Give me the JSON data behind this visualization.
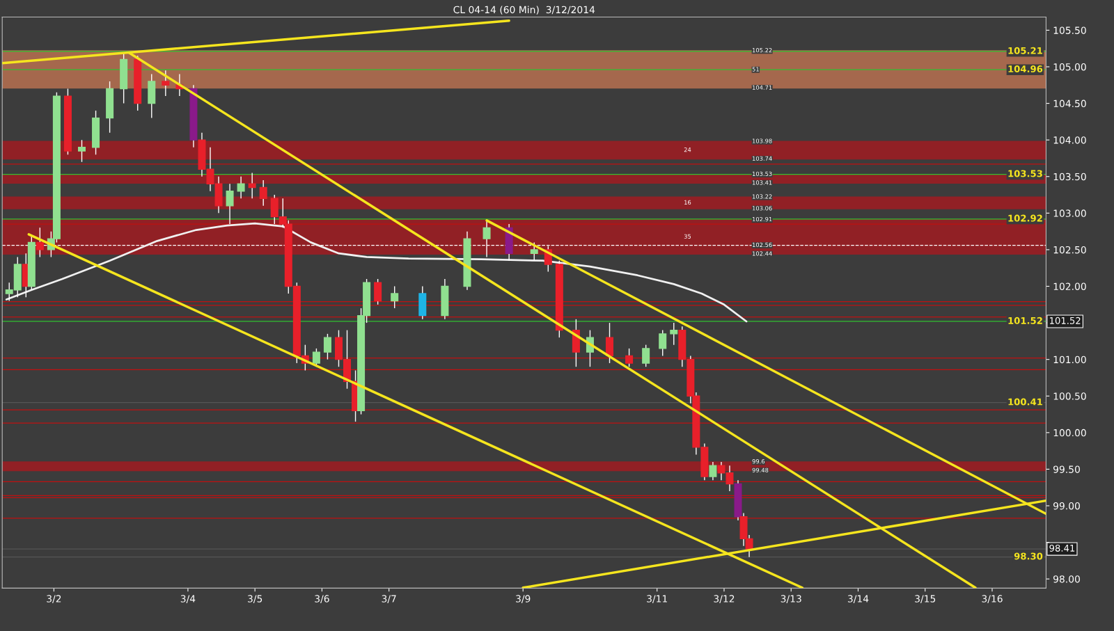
{
  "chart_data": {
    "type": "candlestick",
    "title": "CL 04-14 (60 Min)  3/12/2014",
    "x": [
      "2014-03-01T08:00",
      "2014-03-01T11:00",
      "2014-03-01T14:00",
      "2014-03-01T16:00",
      "2014-03-01T19:00",
      "2014-03-01T23:00",
      "2014-03-02T01:00",
      "2014-03-02T05:00",
      "2014-03-02T10:00",
      "2014-03-02T15:00",
      "2014-03-02T20:00",
      "2014-03-03T01:00",
      "2014-03-03T06:00",
      "2014-03-03T11:00",
      "2014-03-03T16:00",
      "2014-03-03T21:00",
      "2014-03-04T02:00",
      "2014-03-04T05:00",
      "2014-03-04T08:00",
      "2014-03-04T11:00",
      "2014-03-04T15:00",
      "2014-03-04T19:00",
      "2014-03-04T23:00",
      "2014-03-05T03:00",
      "2014-03-05T07:00",
      "2014-03-05T10:00",
      "2014-03-05T12:00",
      "2014-03-05T15:00",
      "2014-03-05T18:00",
      "2014-03-05T22:00",
      "2014-03-06T02:00",
      "2014-03-06T06:00",
      "2014-03-06T09:00",
      "2014-03-06T12:00",
      "2014-03-06T14:00",
      "2014-03-06T16:00",
      "2014-03-06T20:00",
      "2014-03-07T02:00",
      "2014-03-07T12:00",
      "2014-03-07T20:00",
      "2014-03-08T04:00",
      "2014-03-08T11:00",
      "2014-03-08T19:00",
      "2014-03-09T04:00",
      "2014-03-09T09:00",
      "2014-03-09T13:00",
      "2014-03-09T19:00",
      "2014-03-10T00:00",
      "2014-03-10T07:00",
      "2014-03-10T14:00",
      "2014-03-10T20:00",
      "2014-03-11T02:00",
      "2014-03-11T06:00",
      "2014-03-11T09:00",
      "2014-03-11T12:00",
      "2014-03-11T14:00",
      "2014-03-11T17:00",
      "2014-03-11T20:00",
      "2014-03-11T23:00",
      "2014-03-12T02:00",
      "2014-03-12T05:00",
      "2014-03-12T07:00",
      "2014-03-12T09:00"
    ],
    "ohlc": [
      [
        101.9,
        102.05,
        101.8,
        101.95
      ],
      [
        101.95,
        102.4,
        101.85,
        102.3
      ],
      [
        102.3,
        102.45,
        101.85,
        102.0
      ],
      [
        102.0,
        102.7,
        101.95,
        102.6
      ],
      [
        102.6,
        102.8,
        102.4,
        102.5
      ],
      [
        102.5,
        102.75,
        102.4,
        102.65
      ],
      [
        102.65,
        104.65,
        102.6,
        104.6
      ],
      [
        104.6,
        104.7,
        103.8,
        103.85
      ],
      [
        103.85,
        104.0,
        103.7,
        103.9
      ],
      [
        103.9,
        104.4,
        103.8,
        104.3
      ],
      [
        104.3,
        104.8,
        104.1,
        104.7
      ],
      [
        104.7,
        105.2,
        104.5,
        105.1
      ],
      [
        105.1,
        105.15,
        104.4,
        104.5
      ],
      [
        104.5,
        104.9,
        104.3,
        104.8
      ],
      [
        104.8,
        104.95,
        104.6,
        104.75
      ],
      [
        104.75,
        104.9,
        104.6,
        104.7
      ],
      [
        104.7,
        104.75,
        103.9,
        104.0
      ],
      [
        104.0,
        104.1,
        103.5,
        103.6
      ],
      [
        103.6,
        103.9,
        103.3,
        103.4
      ],
      [
        103.4,
        103.5,
        103.0,
        103.1
      ],
      [
        103.1,
        103.4,
        102.85,
        103.3
      ],
      [
        103.3,
        103.5,
        103.2,
        103.4
      ],
      [
        103.4,
        103.55,
        103.2,
        103.35
      ],
      [
        103.35,
        103.45,
        103.1,
        103.2
      ],
      [
        103.2,
        103.25,
        102.85,
        102.95
      ],
      [
        102.95,
        103.2,
        102.8,
        102.85
      ],
      [
        102.85,
        102.9,
        101.9,
        102.0
      ],
      [
        102.0,
        102.05,
        100.95,
        101.05
      ],
      [
        101.05,
        101.2,
        100.85,
        100.95
      ],
      [
        100.95,
        101.15,
        100.9,
        101.1
      ],
      [
        101.1,
        101.35,
        101.0,
        101.3
      ],
      [
        101.3,
        101.4,
        100.9,
        101.0
      ],
      [
        101.0,
        101.4,
        100.6,
        100.7
      ],
      [
        100.7,
        100.85,
        100.15,
        100.3
      ],
      [
        100.3,
        101.7,
        100.25,
        101.6
      ],
      [
        101.6,
        102.1,
        101.5,
        102.05
      ],
      [
        102.05,
        102.1,
        101.75,
        101.8
      ],
      [
        101.8,
        102.0,
        101.7,
        101.9
      ],
      [
        101.9,
        102.0,
        101.55,
        101.6
      ],
      [
        101.6,
        102.1,
        101.55,
        102.0
      ],
      [
        102.0,
        102.75,
        101.95,
        102.65
      ],
      [
        102.65,
        102.9,
        102.4,
        102.8
      ],
      [
        102.8,
        102.85,
        102.35,
        102.45
      ],
      [
        102.45,
        102.6,
        102.35,
        102.5
      ],
      [
        102.5,
        102.55,
        102.2,
        102.3
      ],
      [
        102.3,
        102.35,
        101.3,
        101.4
      ],
      [
        101.4,
        101.55,
        100.9,
        101.1
      ],
      [
        101.1,
        101.4,
        100.9,
        101.3
      ],
      [
        101.3,
        101.5,
        100.95,
        101.05
      ],
      [
        101.05,
        101.15,
        100.9,
        100.95
      ],
      [
        100.95,
        101.2,
        100.9,
        101.15
      ],
      [
        101.15,
        101.4,
        101.05,
        101.35
      ],
      [
        101.35,
        101.5,
        101.2,
        101.4
      ],
      [
        101.4,
        101.45,
        100.9,
        101.0
      ],
      [
        101.0,
        101.05,
        100.4,
        100.5
      ],
      [
        100.5,
        100.55,
        99.7,
        99.8
      ],
      [
        99.8,
        99.85,
        99.35,
        99.4
      ],
      [
        99.4,
        99.6,
        99.35,
        99.55
      ],
      [
        99.55,
        99.6,
        99.35,
        99.45
      ],
      [
        99.45,
        99.55,
        99.2,
        99.3
      ],
      [
        99.3,
        99.35,
        98.8,
        98.85
      ],
      [
        98.85,
        98.9,
        98.45,
        98.55
      ],
      [
        98.55,
        98.6,
        98.3,
        98.41
      ]
    ],
    "colors": [
      "#90e090",
      "#90e090",
      "#e8202a",
      "#90e090",
      "#e8202a",
      "#90e090",
      "#90e090",
      "#e8202a",
      "#90e090",
      "#90e090",
      "#90e090",
      "#90e090",
      "#e8202a",
      "#90e090",
      "#e8202a",
      "#e8202a",
      "#8a1a8a",
      "#e8202a",
      "#e8202a",
      "#e8202a",
      "#90e090",
      "#90e090",
      "#e8202a",
      "#e8202a",
      "#e8202a",
      "#e8202a",
      "#e8202a",
      "#e8202a",
      "#e8202a",
      "#90e090",
      "#90e090",
      "#e8202a",
      "#e8202a",
      "#e8202a",
      "#90e090",
      "#90e090",
      "#e8202a",
      "#90e090",
      "#1eb4e6",
      "#90e090",
      "#90e090",
      "#90e090",
      "#8a1a8a",
      "#90e090",
      "#e8202a",
      "#e8202a",
      "#e8202a",
      "#90e090",
      "#e8202a",
      "#e8202a",
      "#90e090",
      "#90e090",
      "#90e090",
      "#e8202a",
      "#e8202a",
      "#e8202a",
      "#e8202a",
      "#90e090",
      "#e8202a",
      "#e8202a",
      "#8a1a8a",
      "#e8202a",
      "#e8202a"
    ],
    "series": [
      {
        "type": "line",
        "color": "#f0f0f0",
        "x": [
          "2014-03-01T07:00",
          "2014-03-01T16:00",
          "2014-03-02T03:00",
          "2014-03-02T20:00",
          "2014-03-03T13:00",
          "2014-03-04T03:00",
          "2014-03-04T14:00",
          "2014-03-05T00:00",
          "2014-03-05T10:00",
          "2014-03-05T20:00",
          "2014-03-06T06:00",
          "2014-03-06T16:00",
          "2014-03-07T07:00",
          "2014-03-08T09:00",
          "2014-03-09T07:00",
          "2014-03-10T00:00",
          "2014-03-10T17:00",
          "2014-03-11T06:00",
          "2014-03-11T16:00",
          "2014-03-12T00:00",
          "2014-03-12T08:00"
        ],
        "values": [
          101.82,
          101.95,
          102.1,
          102.35,
          102.62,
          102.77,
          102.83,
          102.86,
          102.82,
          102.6,
          102.45,
          102.4,
          102.38,
          102.37,
          102.35,
          102.27,
          102.15,
          102.03,
          101.9,
          101.75,
          101.52
        ]
      },
      {
        "type": "line",
        "color": "#f5e51e",
        "x": [
          "2014-03-01T05:30",
          "2014-03-08T19:00"
        ],
        "values": [
          105.05,
          105.63
        ]
      },
      {
        "type": "line",
        "color": "#f5e51e",
        "x": [
          "2014-03-01T15:00",
          "2014-03-13T04:00"
        ],
        "values": [
          102.71,
          97.88
        ]
      },
      {
        "type": "line",
        "color": "#f5e51e",
        "x": [
          "2014-03-03T03:00",
          "2014-03-15T18:00"
        ],
        "values": [
          105.19,
          97.88
        ]
      },
      {
        "type": "line",
        "color": "#f5e51e",
        "x": [
          "2014-03-08T11:00",
          "2014-03-16T19:18"
        ],
        "values": [
          102.9,
          98.89
        ]
      },
      {
        "type": "line",
        "color": "#f5e51e",
        "x": [
          "2014-03-09T00:00",
          "2014-03-16T19:18"
        ],
        "values": [
          97.88,
          99.07
        ]
      }
    ],
    "xlim": [
      "2014-03-01T05:30",
      "2014-03-16T19:18"
    ],
    "xticks": [
      {
        "value": "2014-03-02",
        "label": "3/2"
      },
      {
        "value": "2014-03-04",
        "label": "3/4"
      },
      {
        "value": "2014-03-05",
        "label": "3/5"
      },
      {
        "value": "2014-03-06",
        "label": "3/6"
      },
      {
        "value": "2014-03-07",
        "label": "3/7"
      },
      {
        "value": "2014-03-09",
        "label": "3/9"
      },
      {
        "value": "2014-03-11",
        "label": "3/11"
      },
      {
        "value": "2014-03-12",
        "label": "3/12"
      },
      {
        "value": "2014-03-13",
        "label": "3/13"
      },
      {
        "value": "2014-03-14",
        "label": "3/14"
      },
      {
        "value": "2014-03-15",
        "label": "3/15"
      },
      {
        "value": "2014-03-16",
        "label": "3/16"
      }
    ],
    "ylim": [
      97.875,
      105.68
    ],
    "yticks": [
      {
        "value": 98,
        "label": "98.00"
      },
      {
        "value": 98.5,
        "label": null
      },
      {
        "value": 99,
        "label": "99.00"
      },
      {
        "value": 99.5,
        "label": "99.50"
      },
      {
        "value": 100,
        "label": "100.00"
      },
      {
        "value": 100.5,
        "label": "100.50"
      },
      {
        "value": 101,
        "label": "101.00"
      },
      {
        "value": 101.5,
        "label": null
      },
      {
        "value": 102,
        "label": "102.00"
      },
      {
        "value": 102.5,
        "label": "102.50"
      },
      {
        "value": 103,
        "label": "103.00"
      },
      {
        "value": 103.5,
        "label": "103.50"
      },
      {
        "value": 104,
        "label": "104.00"
      },
      {
        "value": 104.5,
        "label": "104.50"
      },
      {
        "value": 105,
        "label": "105.00"
      },
      {
        "value": 105.5,
        "label": "105.50"
      }
    ],
    "bands": [
      {
        "axis": "y",
        "from": 104.71,
        "to": 105.22,
        "color": "#b87050"
      },
      {
        "axis": "y",
        "from": 103.74,
        "to": 103.98,
        "color": "#a01c22",
        "label": "24"
      },
      {
        "axis": "y",
        "from": 103.41,
        "to": 103.53,
        "color": "#a01c22"
      },
      {
        "axis": "y",
        "from": 103.06,
        "to": 103.22,
        "color": "#a01c22",
        "label": "16"
      },
      {
        "axis": "y",
        "from": 102.44,
        "to": 102.91,
        "color": "#a01c22",
        "label": "35"
      },
      {
        "axis": "y",
        "from": 99.48,
        "to": 99.6,
        "color": "#a01c22"
      }
    ],
    "ref_lines": [
      {
        "axis": "y",
        "value": 105.21,
        "label": "105.21",
        "color": "#30c030"
      },
      {
        "axis": "y",
        "value": 104.96,
        "label": "104.96",
        "color": "#30c030"
      },
      {
        "axis": "y",
        "value": 103.53,
        "label": "103.53",
        "color": "#30c030"
      },
      {
        "axis": "y",
        "value": 102.92,
        "label": "102.92",
        "color": "#30c030"
      },
      {
        "axis": "y",
        "value": 101.52,
        "label": "101.52",
        "color": "#30c030"
      },
      {
        "axis": "y",
        "value": 100.41,
        "label": "100.41",
        "color": "#555555"
      },
      {
        "axis": "y",
        "value": 98.3,
        "label": "98.30",
        "color": "#555555"
      },
      {
        "axis": "y",
        "value": 98.41,
        "color": "#555555"
      },
      {
        "axis": "y",
        "value": 102.56,
        "color": "#ffffff",
        "line_style": "dashed"
      },
      {
        "axis": "y",
        "value": 103.67,
        "color": "#c01010"
      },
      {
        "axis": "y",
        "value": 102.85,
        "color": "#c01010"
      },
      {
        "axis": "y",
        "value": 101.79,
        "color": "#c01010"
      },
      {
        "axis": "y",
        "value": 101.74,
        "color": "#c01010"
      },
      {
        "axis": "y",
        "value": 101.58,
        "color": "#c01010"
      },
      {
        "axis": "y",
        "value": 101.02,
        "color": "#c01010"
      },
      {
        "axis": "y",
        "value": 100.86,
        "color": "#c01010"
      },
      {
        "axis": "y",
        "value": 100.31,
        "color": "#c01010"
      },
      {
        "axis": "y",
        "value": 100.13,
        "color": "#c01010"
      },
      {
        "axis": "y",
        "value": 99.33,
        "color": "#c01010"
      },
      {
        "axis": "y",
        "value": 99.14,
        "color": "#c01010"
      },
      {
        "axis": "y",
        "value": 99.11,
        "color": "#c01010"
      },
      {
        "axis": "y",
        "value": 98.83,
        "color": "#c01010"
      }
    ],
    "annotations": [
      {
        "text": "101.52",
        "x": "2014-03-16T19:18",
        "y": 101.52
      },
      {
        "text": "98.41",
        "x": "2014-03-16T19:18",
        "y": 98.41
      },
      {
        "text": "105.22",
        "x": "2014-03-12T10:00",
        "y": 105.22
      },
      {
        "text": "51",
        "x": "2014-03-12T10:00",
        "y": 104.96
      },
      {
        "text": "104.71",
        "x": "2014-03-12T10:00",
        "y": 104.71
      },
      {
        "text": "103.98",
        "x": "2014-03-12T10:00",
        "y": 103.98
      },
      {
        "text": "103.74",
        "x": "2014-03-12T10:00",
        "y": 103.74
      },
      {
        "text": "103.53",
        "x": "2014-03-12T10:00",
        "y": 103.53
      },
      {
        "text": "103.41",
        "x": "2014-03-12T10:00",
        "y": 103.41
      },
      {
        "text": "103.22",
        "x": "2014-03-12T10:00",
        "y": 103.22
      },
      {
        "text": "103.06",
        "x": "2014-03-12T10:00",
        "y": 103.06
      },
      {
        "text": "102.91",
        "x": "2014-03-12T10:00",
        "y": 102.91
      },
      {
        "text": "102.56",
        "x": "2014-03-12T10:00",
        "y": 102.56
      },
      {
        "text": "102.44",
        "x": "2014-03-12T10:00",
        "y": 102.44
      },
      {
        "text": "99.6",
        "x": "2014-03-12T10:00",
        "y": 99.6
      },
      {
        "text": "99.48",
        "x": "2014-03-12T10:00",
        "y": 99.48
      }
    ]
  }
}
